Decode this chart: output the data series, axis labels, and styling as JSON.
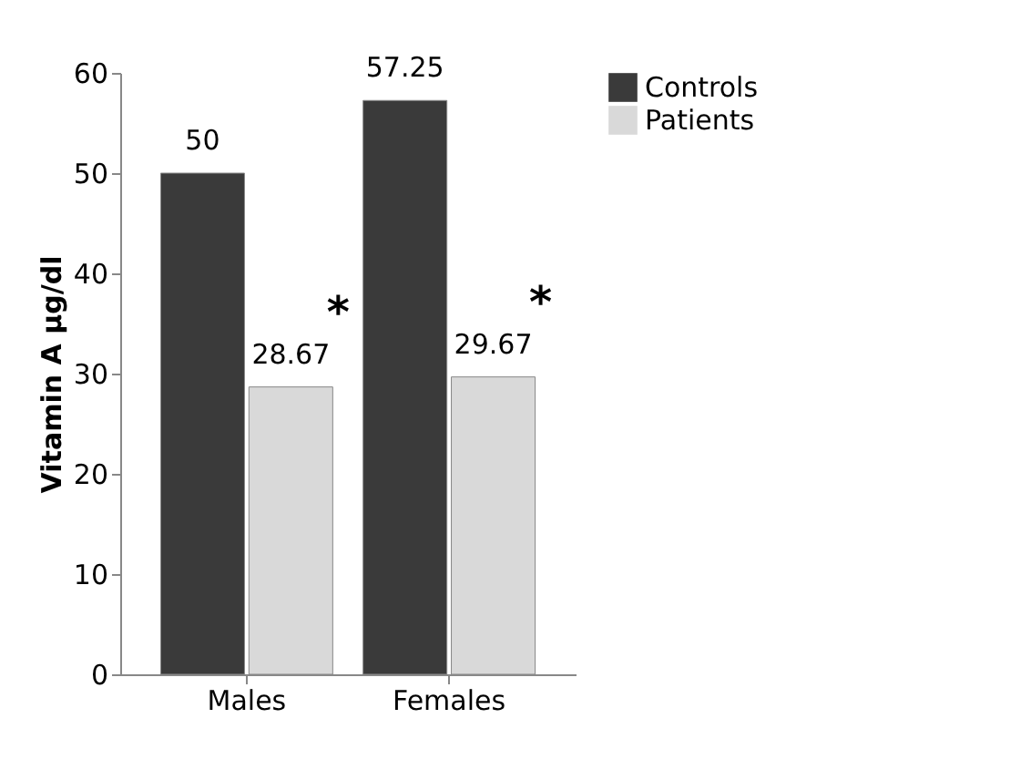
{
  "chart_data": {
    "type": "bar",
    "ylabel": "Vitamin A  µg/dl",
    "categories": [
      "Males",
      "Females"
    ],
    "series": [
      {
        "name": "Controls",
        "color": "#3a3a3a",
        "values": [
          50,
          57.25
        ]
      },
      {
        "name": "Patients",
        "color": "#d9d9d9",
        "values": [
          28.67,
          29.67
        ]
      }
    ],
    "ylim": [
      0,
      60
    ],
    "yticks": [
      0,
      10,
      20,
      30,
      40,
      50,
      60
    ],
    "data_labels": true,
    "legend": "right",
    "grid": false,
    "annotations": [
      {
        "text": "*",
        "x": "Males",
        "y": 28.67
      },
      {
        "text": "*",
        "x": "Females",
        "y": 29.67
      }
    ]
  }
}
